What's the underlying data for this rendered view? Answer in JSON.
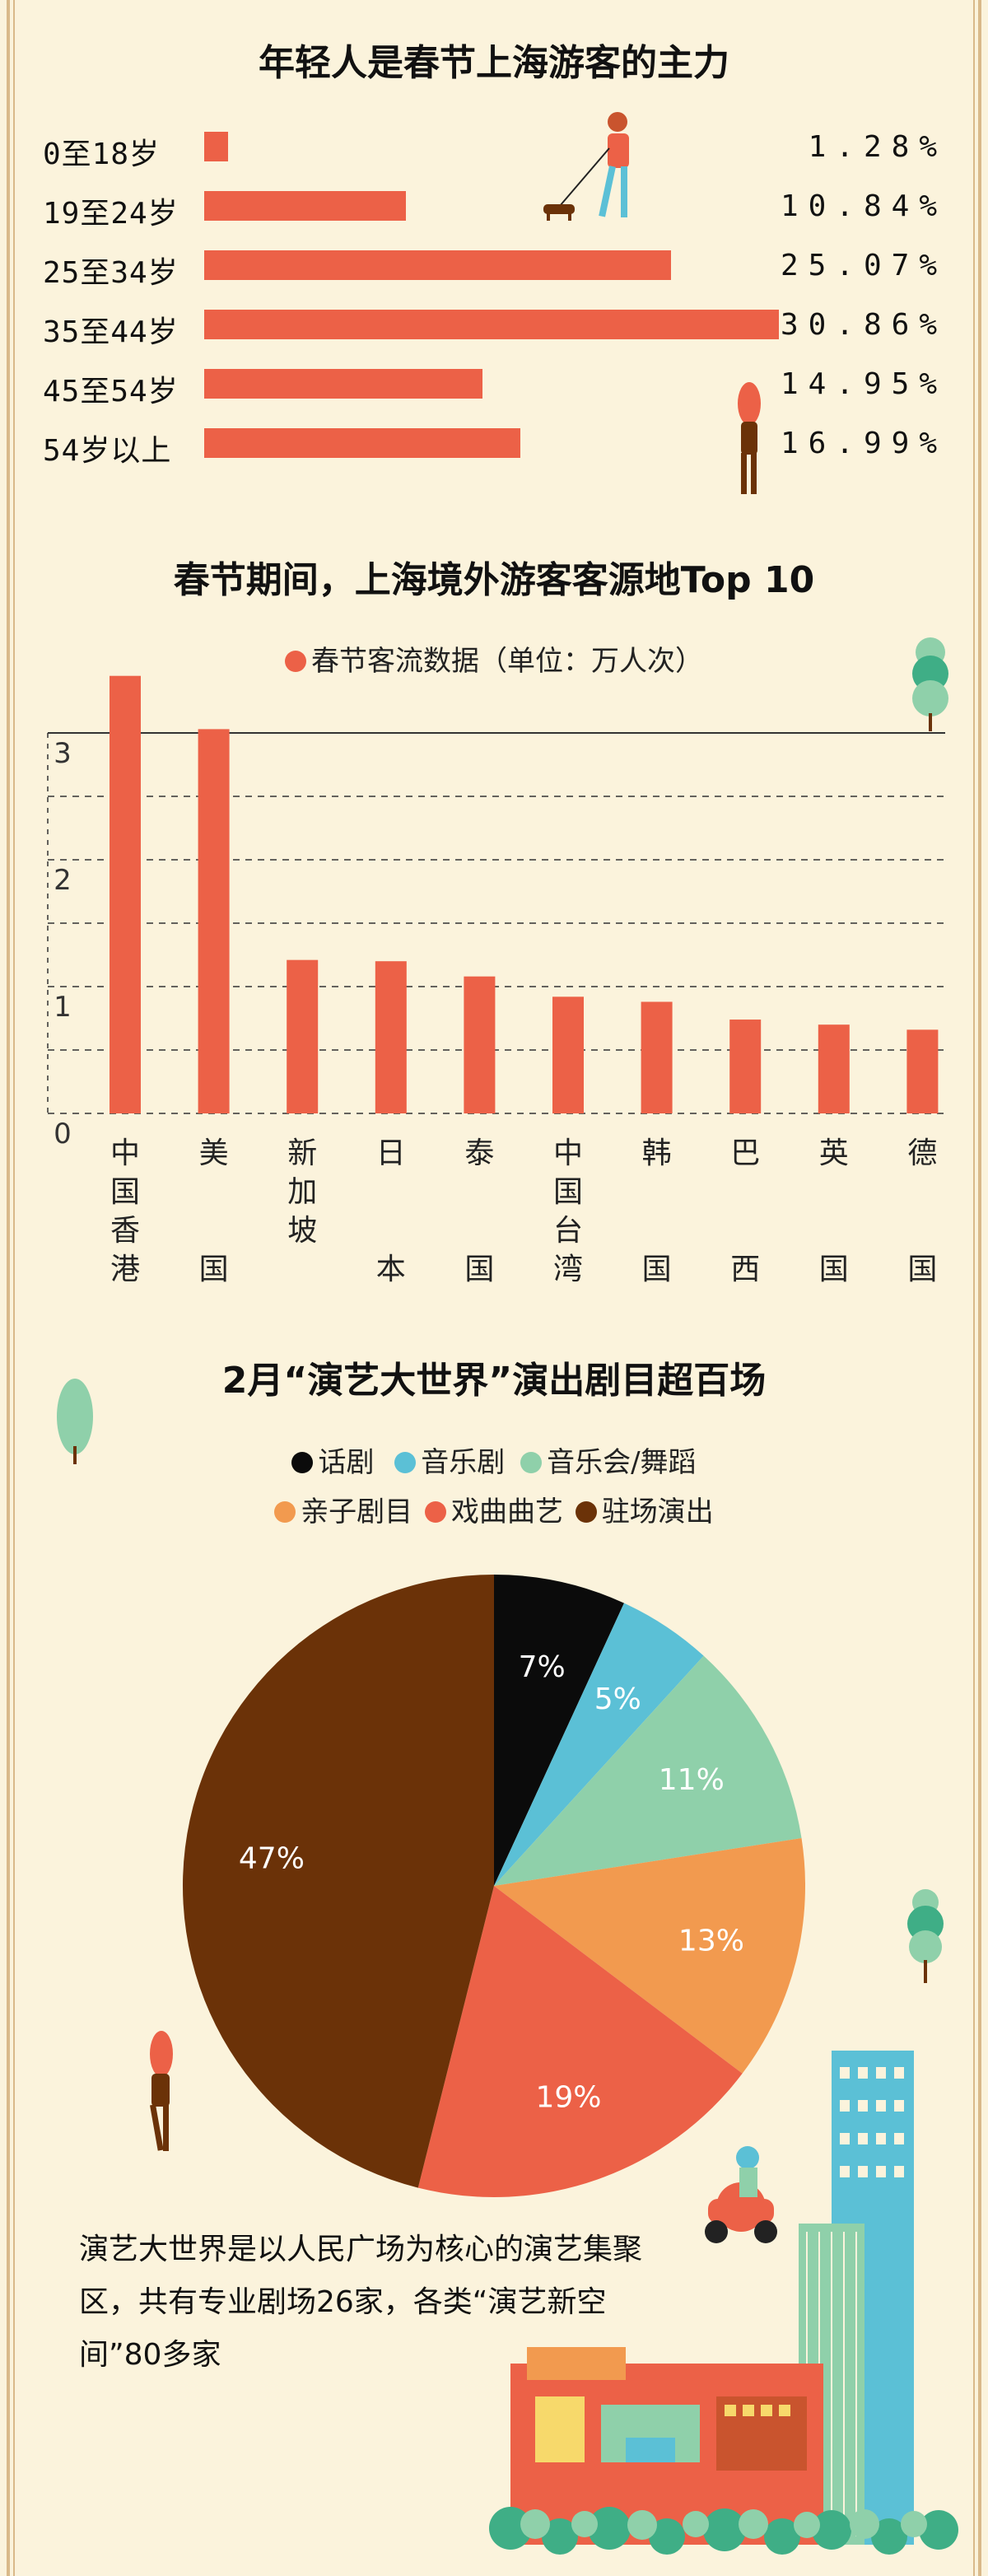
{
  "section1": {
    "title": "年轻人是春节上海游客的主力",
    "rows": [
      {
        "label": "0至18岁",
        "value": 1.28,
        "display": "1.28%"
      },
      {
        "label": "19至24岁",
        "value": 10.84,
        "display": "10.84%"
      },
      {
        "label": "25至34岁",
        "value": 25.07,
        "display": "25.07%"
      },
      {
        "label": "35至44岁",
        "value": 30.86,
        "display": "30.86%"
      },
      {
        "label": "45至54岁",
        "value": 14.95,
        "display": "14.95%"
      },
      {
        "label": "54岁以上",
        "value": 16.99,
        "display": "16.99%"
      }
    ]
  },
  "section2": {
    "title": "春节期间，上海境外游客客源地Top 10",
    "legend": "春节客流数据（单位：万人次）"
  },
  "section3": {
    "title": "2月“演艺大世界”演出剧目超百场",
    "legend_row1": [
      "话剧",
      "音乐剧",
      "音乐会/舞蹈"
    ],
    "legend_row2": [
      "亲子剧目",
      "戏曲曲艺",
      "驻场演出"
    ],
    "paragraph": "演艺大世界是以人民广场为核心的演艺集聚区，共有专业剧场26家，各类“演艺新空间”80多家"
  },
  "colors": {
    "accent": "#ec6147",
    "black": "#0b0b0b",
    "blue": "#5bc0d6",
    "green": "#8fd0aa",
    "orange": "#f29a4f",
    "brown": "#6b3208",
    "background": "#fbf3dc"
  },
  "chart_data": [
    {
      "type": "bar",
      "orientation": "horizontal",
      "title": "年轻人是春节上海游客的主力",
      "categories": [
        "0至18岁",
        "19至24岁",
        "25至34岁",
        "35至44岁",
        "45至54岁",
        "54岁以上"
      ],
      "values": [
        1.28,
        10.84,
        25.07,
        30.86,
        14.95,
        16.99
      ],
      "unit": "%"
    },
    {
      "type": "bar",
      "title": "春节期间，上海境外游客客源地Top 10",
      "legend": "春节客流数据（单位：万人次）",
      "categories": [
        "中国香港",
        "美国",
        "新加坡",
        "日本",
        "泰国",
        "中国台湾",
        "韩国",
        "巴西",
        "英国",
        "德国"
      ],
      "values": [
        3.45,
        3.03,
        1.21,
        1.2,
        1.08,
        0.92,
        0.88,
        0.74,
        0.7,
        0.66
      ],
      "yticks": [
        "0",
        "1",
        "2",
        "3"
      ],
      "ylim": [
        0,
        3.5
      ],
      "grid": true
    },
    {
      "type": "pie",
      "title": "2月“演艺大世界”演出剧目超百场",
      "slices": [
        {
          "name": "话剧",
          "value": 7,
          "label": "7%",
          "color": "#0b0b0b"
        },
        {
          "name": "音乐剧",
          "value": 5,
          "label": "5%",
          "color": "#5bc0d6"
        },
        {
          "name": "音乐会/舞蹈",
          "value": 11,
          "label": "11%",
          "color": "#8fd0aa"
        },
        {
          "name": "亲子剧目",
          "value": 13,
          "label": "13%",
          "color": "#f29a4f"
        },
        {
          "name": "戏曲曲艺",
          "value": 19,
          "label": "19%",
          "color": "#ec6147"
        },
        {
          "name": "驻场演出",
          "value": 47,
          "label": "47%",
          "color": "#6b3208"
        }
      ]
    }
  ]
}
